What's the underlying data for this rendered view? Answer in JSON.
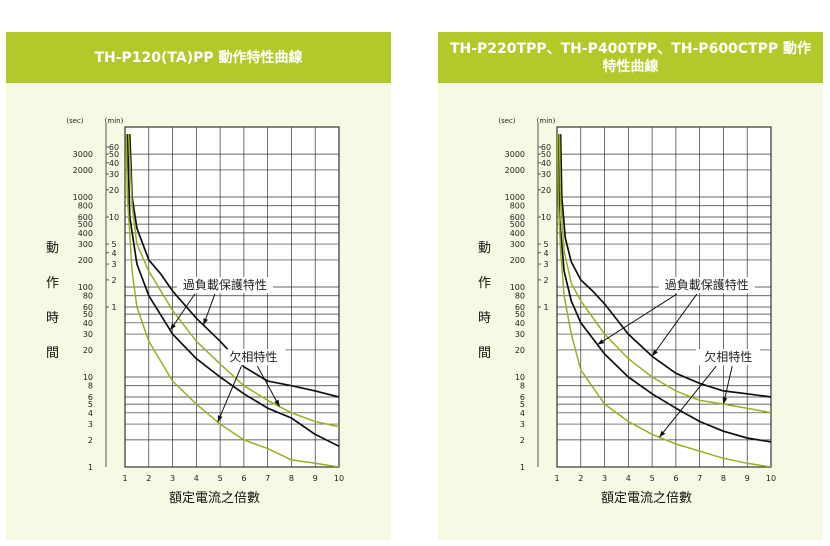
{
  "chart_data": [
    {
      "type": "line",
      "title": "TH-P120(TA)PP 動作特性曲線",
      "xlabel": "額定電流之倍數",
      "ylabel": "動作時間",
      "y_unit_left": "(sec)",
      "y_unit_right": "(min)",
      "x_ticks": [
        "1",
        "2",
        "3",
        "4",
        "5",
        "6",
        "7",
        "8",
        "9",
        "10"
      ],
      "y_ticks_sec": [
        "3000",
        "2000",
        "1000",
        "800",
        "600",
        "500",
        "400",
        "300",
        "200",
        "100",
        "80",
        "60",
        "50",
        "40",
        "30",
        "20",
        "10",
        "8",
        "6",
        "5",
        "4",
        "3",
        "2",
        "1"
      ],
      "y_ticks_min": [
        "60",
        "50",
        "40",
        "30",
        "20",
        "10",
        "5",
        "4",
        "3",
        "2",
        "1"
      ],
      "xlim": [
        1,
        10
      ],
      "ylim": [
        1,
        6000
      ],
      "yscale": "log",
      "annotations": [
        "過負載保護特性",
        "欠相特性"
      ],
      "series": [
        {
          "group": "overload",
          "color": "#111111",
          "x": [
            1.2,
            1.3,
            1.5,
            2,
            2.5,
            3,
            4,
            5,
            6,
            7,
            8,
            9,
            10
          ],
          "y": [
            5000,
            1000,
            450,
            200,
            140,
            90,
            45,
            25,
            13,
            9,
            8,
            7,
            6
          ]
        },
        {
          "group": "overload",
          "color": "#111111",
          "x": [
            1.1,
            1.2,
            1.5,
            2,
            3,
            4,
            5,
            6,
            7,
            8,
            9,
            10
          ],
          "y": [
            5000,
            600,
            180,
            80,
            30,
            16,
            10,
            6.5,
            4.5,
            3.5,
            2.3,
            1.7
          ]
        },
        {
          "group": "phase",
          "color": "#9ab020",
          "x": [
            1.15,
            1.3,
            1.5,
            2,
            3,
            4,
            5,
            6,
            7,
            8,
            9,
            10
          ],
          "y": [
            5000,
            800,
            300,
            150,
            55,
            25,
            14,
            8,
            5.5,
            4,
            3.2,
            2.8
          ]
        },
        {
          "group": "phase",
          "color": "#9ab020",
          "x": [
            1.05,
            1.1,
            1.3,
            1.5,
            2,
            3,
            4,
            5,
            6,
            7,
            8,
            9,
            10
          ],
          "y": [
            5000,
            1000,
            150,
            60,
            25,
            9,
            5,
            3,
            2,
            1.6,
            1.2,
            1.1,
            1
          ]
        }
      ]
    },
    {
      "type": "line",
      "title": "TH-P220TPP、TH-P400TPP、TH-P600CTPP 動作特性曲線",
      "xlabel": "額定電流之倍數",
      "ylabel": "動作時間",
      "y_unit_left": "(sec)",
      "y_unit_right": "(min)",
      "x_ticks": [
        "1",
        "2",
        "3",
        "4",
        "5",
        "6",
        "7",
        "8",
        "9",
        "10"
      ],
      "y_ticks_sec": [
        "3000",
        "2000",
        "1000",
        "800",
        "600",
        "500",
        "400",
        "300",
        "200",
        "100",
        "80",
        "60",
        "50",
        "40",
        "30",
        "20",
        "10",
        "8",
        "6",
        "5",
        "4",
        "3",
        "2",
        "1"
      ],
      "y_ticks_min": [
        "60",
        "50",
        "40",
        "30",
        "20",
        "10",
        "5",
        "4",
        "3",
        "2",
        "1"
      ],
      "xlim": [
        1,
        10
      ],
      "ylim": [
        1,
        6000
      ],
      "yscale": "log",
      "annotations": [
        "過負載保護特性",
        "欠相特性"
      ],
      "series": [
        {
          "group": "overload",
          "color": "#111111",
          "x": [
            1.15,
            1.2,
            1.35,
            1.6,
            2,
            2.5,
            3,
            4,
            5,
            6,
            7,
            8,
            9,
            10
          ],
          "y": [
            5000,
            1000,
            350,
            190,
            120,
            90,
            65,
            30,
            17,
            11,
            8.5,
            7,
            6.5,
            6
          ]
        },
        {
          "group": "overload",
          "color": "#111111",
          "x": [
            1.05,
            1.1,
            1.3,
            1.6,
            2,
            3,
            4,
            5,
            6,
            7,
            8,
            9,
            10
          ],
          "y": [
            5000,
            600,
            150,
            70,
            40,
            18,
            10,
            6.5,
            4.5,
            3.2,
            2.5,
            2.1,
            1.9
          ]
        },
        {
          "group": "phase",
          "color": "#9ab020",
          "x": [
            1.1,
            1.15,
            1.3,
            1.6,
            2,
            3,
            4,
            5,
            6,
            7,
            8,
            9,
            10
          ],
          "y": [
            5000,
            900,
            250,
            110,
            70,
            30,
            16,
            10,
            7,
            5.5,
            5,
            4.5,
            4
          ]
        },
        {
          "group": "phase",
          "color": "#9ab020",
          "x": [
            1.02,
            1.05,
            1.15,
            1.3,
            1.6,
            2,
            3,
            4,
            5,
            6,
            7,
            8,
            9,
            10
          ],
          "y": [
            5000,
            1000,
            250,
            80,
            30,
            12,
            5,
            3.2,
            2.3,
            1.8,
            1.5,
            1.25,
            1.1,
            1
          ]
        }
      ]
    }
  ]
}
